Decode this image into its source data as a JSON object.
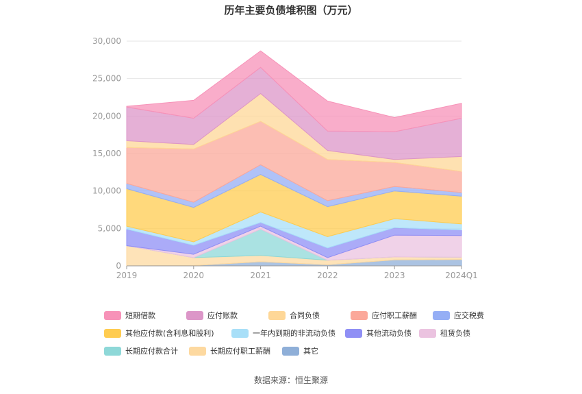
{
  "title": "历年主要负债堆积图（万元）",
  "source": "数据来源：恒生聚源",
  "chart_data": {
    "type": "area",
    "stacked": true,
    "categories": [
      "2019",
      "2020",
      "2021",
      "2022",
      "2023",
      "2024Q1"
    ],
    "ylim": [
      0,
      30000
    ],
    "yticks": [
      "0",
      "5,000",
      "10,000",
      "15,000",
      "20,000",
      "25,000",
      "30,000"
    ],
    "grid": true,
    "legend_position": "bottom",
    "series": [
      {
        "name": "其它",
        "color": "#8fafd8",
        "values": [
          0,
          50,
          550,
          150,
          800,
          850
        ]
      },
      {
        "name": "长期应付职工薪酬",
        "color": "#fdd9a0",
        "values": [
          2700,
          1050,
          850,
          600,
          400,
          300
        ]
      },
      {
        "name": "长期应付款合计",
        "color": "#8ed8d8",
        "values": [
          0,
          0,
          3500,
          0,
          0,
          0
        ]
      },
      {
        "name": "租赁负债",
        "color": "#ebc3e0",
        "values": [
          0,
          450,
          400,
          350,
          2900,
          2900
        ]
      },
      {
        "name": "其他流动负债",
        "color": "#8f8ff5",
        "values": [
          2200,
          1200,
          500,
          1300,
          1000,
          750
        ]
      },
      {
        "name": "一年内到期的非流动负债",
        "color": "#a8dff8",
        "values": [
          400,
          450,
          1400,
          1500,
          1200,
          800
        ]
      },
      {
        "name": "其他应付款(含利息和股利)",
        "color": "#ffcc50",
        "values": [
          5000,
          4600,
          5000,
          4000,
          3700,
          3700
        ]
      },
      {
        "name": "应交税费",
        "color": "#95aef5",
        "values": [
          700,
          700,
          1300,
          800,
          600,
          500
        ]
      },
      {
        "name": "应付职工薪酬",
        "color": "#fba89a",
        "values": [
          4800,
          7100,
          5800,
          5500,
          3200,
          2800
        ]
      },
      {
        "name": "合同负债",
        "color": "#fed797",
        "values": [
          900,
          600,
          3700,
          1200,
          400,
          2000
        ]
      },
      {
        "name": "应付账款",
        "color": "#dc96c8",
        "values": [
          4500,
          3500,
          3500,
          2600,
          3700,
          5100
        ]
      },
      {
        "name": "短期借款",
        "color": "#f792b8",
        "values": [
          100,
          2400,
          2200,
          4000,
          1900,
          2000
        ]
      }
    ]
  },
  "legend": [
    {
      "name": "短期借款",
      "color": "#f792b8"
    },
    {
      "name": "应付账款",
      "color": "#dc96c8"
    },
    {
      "name": "合同负债",
      "color": "#fed797"
    },
    {
      "name": "应付职工薪酬",
      "color": "#fba89a"
    },
    {
      "name": "应交税费",
      "color": "#95aef5"
    },
    {
      "name": "其他应付款(含利息和股利)",
      "color": "#ffcc50"
    },
    {
      "name": "一年内到期的非流动负债",
      "color": "#a8dff8"
    },
    {
      "name": "其他流动负债",
      "color": "#8f8ff5"
    },
    {
      "name": "租赁负债",
      "color": "#ebc3e0"
    },
    {
      "name": "长期应付款合计",
      "color": "#8ed8d8"
    },
    {
      "name": "长期应付职工薪酬",
      "color": "#fdd9a0"
    },
    {
      "name": "其它",
      "color": "#8fafd8"
    }
  ]
}
